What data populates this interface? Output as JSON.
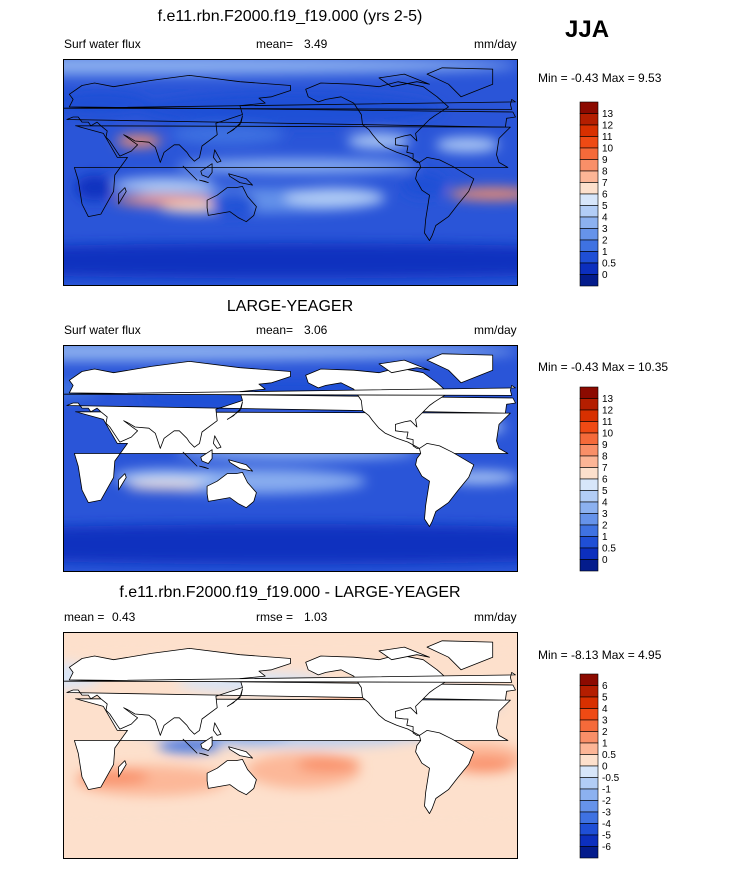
{
  "season": "JJA",
  "panels": [
    {
      "title": "f.e11.rbn.F2000.f19_f19.000 (yrs 2-5)",
      "left_label": "Surf water flux",
      "mean_label": "mean=",
      "mean_value": "3.49",
      "units": "mm/day",
      "minmax": "Min =  -0.43 Max =   9.53",
      "colorbar": {
        "labels": [
          "13",
          "12",
          "11",
          "10",
          "9",
          "8",
          "7",
          "6",
          "5",
          "4",
          "3",
          "2",
          "1",
          "0.5",
          "0"
        ],
        "colors": [
          "#8c0a00",
          "#b41e00",
          "#d83000",
          "#ef4a14",
          "#f56a3a",
          "#f98f68",
          "#fcb596",
          "#fde0cc",
          "#d7e6fa",
          "#b2cdf6",
          "#8cb1f0",
          "#6693ea",
          "#3f72e2",
          "#1f4fd6",
          "#0c2fbe",
          "#041c8c"
        ]
      },
      "land_masked": false
    },
    {
      "title": "LARGE-YEAGER",
      "left_label": "Surf water flux",
      "mean_label": "mean=",
      "mean_value": "3.06",
      "units": "mm/day",
      "minmax": "Min =  -0.43 Max =  10.35",
      "colorbar": {
        "labels": [
          "13",
          "12",
          "11",
          "10",
          "9",
          "8",
          "7",
          "6",
          "5",
          "4",
          "3",
          "2",
          "1",
          "0.5",
          "0"
        ],
        "colors": [
          "#8c0a00",
          "#b41e00",
          "#d83000",
          "#ef4a14",
          "#f56a3a",
          "#f98f68",
          "#fcb596",
          "#fde0cc",
          "#d7e6fa",
          "#b2cdf6",
          "#8cb1f0",
          "#6693ea",
          "#3f72e2",
          "#1f4fd6",
          "#0c2fbe",
          "#041c8c"
        ]
      },
      "land_masked": true
    },
    {
      "title": "f.e11.rbn.F2000.f19_f19.000 - LARGE-YEAGER",
      "left_label": "mean =",
      "left_value": "0.43",
      "mean_label": "rmse =",
      "mean_value": "1.03",
      "units": "mm/day",
      "minmax": "Min =  -8.13 Max =   4.95",
      "colorbar": {
        "labels": [
          "6",
          "5",
          "4",
          "3",
          "2",
          "1",
          "0.5",
          "0",
          "-0.5",
          "-1",
          "-2",
          "-3",
          "-4",
          "-5",
          "-6"
        ],
        "colors": [
          "#8c0a00",
          "#b41e00",
          "#d83000",
          "#ef4a14",
          "#f56a3a",
          "#f98f68",
          "#fcb596",
          "#fde0cc",
          "#d7e6fa",
          "#b2cdf6",
          "#8cb1f0",
          "#6693ea",
          "#3f72e2",
          "#1f4fd6",
          "#0c2fbe",
          "#041c8c"
        ]
      },
      "land_masked": true
    }
  ],
  "map_fields": [
    {
      "background": "#2a55d8",
      "blobs": [
        {
          "lon": 0,
          "lat": 85,
          "rx": 360,
          "ry": 8,
          "color": "#8cb1f0"
        },
        {
          "lon": 180,
          "lat": -70,
          "rx": 360,
          "ry": 14,
          "color": "#0c2fbe"
        },
        {
          "lon": 180,
          "lat": 50,
          "rx": 120,
          "ry": 14,
          "color": "#1f4fd6"
        },
        {
          "lon": 185,
          "lat": 5,
          "rx": 95,
          "ry": 6,
          "color": "#8cb1f0"
        },
        {
          "lon": 130,
          "lat": 30,
          "rx": 45,
          "ry": 8,
          "color": "#3f72e2"
        },
        {
          "lon": 150,
          "lat": -22,
          "rx": 100,
          "ry": 10,
          "color": "#6693ea"
        },
        {
          "lon": 215,
          "lat": -20,
          "rx": 40,
          "ry": 8,
          "color": "#b2cdf6"
        },
        {
          "lon": 80,
          "lat": -10,
          "rx": 40,
          "ry": 6,
          "color": "#b2cdf6"
        },
        {
          "lon": 80,
          "lat": -22,
          "rx": 40,
          "ry": 4,
          "color": "#f98f68"
        },
        {
          "lon": 105,
          "lat": -28,
          "rx": 28,
          "ry": 4,
          "color": "#fde0cc"
        },
        {
          "lon": 250,
          "lat": 25,
          "rx": 25,
          "ry": 6,
          "color": "#b2cdf6"
        },
        {
          "lon": 340,
          "lat": -17,
          "rx": 35,
          "ry": 5,
          "color": "#f98f68"
        },
        {
          "lon": 320,
          "lat": 22,
          "rx": 25,
          "ry": 6,
          "color": "#b2cdf6"
        },
        {
          "lon": 60,
          "lat": 25,
          "rx": 18,
          "ry": 5,
          "color": "#f98f68"
        },
        {
          "lon": 30,
          "lat": 55,
          "rx": 40,
          "ry": 10,
          "color": "#1f4fd6"
        },
        {
          "lon": 285,
          "lat": -10,
          "rx": 18,
          "ry": 10,
          "color": "#1f4fd6"
        },
        {
          "lon": 135,
          "lat": -25,
          "rx": 18,
          "ry": 10,
          "color": "#1f4fd6"
        },
        {
          "lon": 25,
          "lat": -12,
          "rx": 15,
          "ry": 10,
          "color": "#0c2fbe"
        }
      ]
    },
    {
      "background": "#2a55d8",
      "blobs": [
        {
          "lon": 0,
          "lat": 85,
          "rx": 360,
          "ry": 8,
          "color": "#8cb1f0"
        },
        {
          "lon": 180,
          "lat": -68,
          "rx": 360,
          "ry": 16,
          "color": "#0c2fbe"
        },
        {
          "lon": 180,
          "lat": 48,
          "rx": 120,
          "ry": 14,
          "color": "#1f4fd6"
        },
        {
          "lon": 185,
          "lat": 5,
          "rx": 95,
          "ry": 6,
          "color": "#8cb1f0"
        },
        {
          "lon": 150,
          "lat": 22,
          "rx": 70,
          "ry": 8,
          "color": "#b2cdf6"
        },
        {
          "lon": 150,
          "lat": -18,
          "rx": 90,
          "ry": 10,
          "color": "#8cb1f0"
        },
        {
          "lon": 80,
          "lat": -15,
          "rx": 40,
          "ry": 6,
          "color": "#b2cdf6"
        },
        {
          "lon": 80,
          "lat": -22,
          "rx": 30,
          "ry": 3,
          "color": "#fde0cc"
        },
        {
          "lon": 330,
          "lat": -15,
          "rx": 30,
          "ry": 5,
          "color": "#b2cdf6"
        },
        {
          "lon": 320,
          "lat": 25,
          "rx": 30,
          "ry": 6,
          "color": "#b2cdf6"
        },
        {
          "lon": 0,
          "lat": 55,
          "rx": 30,
          "ry": 8,
          "color": "#3f72e2"
        }
      ]
    },
    {
      "background": "#fde0cc",
      "blobs": [
        {
          "lon": 180,
          "lat": 75,
          "rx": 360,
          "ry": 10,
          "color": "#fde0cc"
        },
        {
          "lon": 70,
          "lat": -28,
          "rx": 60,
          "ry": 12,
          "color": "#fcb596"
        },
        {
          "lon": 40,
          "lat": -25,
          "rx": 28,
          "ry": 6,
          "color": "#f98f68"
        },
        {
          "lon": 190,
          "lat": -20,
          "rx": 45,
          "ry": 14,
          "color": "#fcb596"
        },
        {
          "lon": 210,
          "lat": -15,
          "rx": 25,
          "ry": 6,
          "color": "#f98f68"
        },
        {
          "lon": 330,
          "lat": -10,
          "rx": 35,
          "ry": 12,
          "color": "#fcb596"
        },
        {
          "lon": 335,
          "lat": -15,
          "rx": 22,
          "ry": 6,
          "color": "#f98f68"
        },
        {
          "lon": 225,
          "lat": 32,
          "rx": 30,
          "ry": 8,
          "color": "#fcb596"
        },
        {
          "lon": 190,
          "lat": 5,
          "rx": 80,
          "ry": 6,
          "color": "#b2cdf6"
        },
        {
          "lon": 150,
          "lat": 50,
          "rx": 60,
          "ry": 8,
          "color": "#d7e6fa"
        },
        {
          "lon": 305,
          "lat": 35,
          "rx": 40,
          "ry": 8,
          "color": "#6693ea"
        },
        {
          "lon": 145,
          "lat": 10,
          "rx": 35,
          "ry": 10,
          "color": "#8cb1f0"
        },
        {
          "lon": 100,
          "lat": 0,
          "rx": 25,
          "ry": 6,
          "color": "#3f72e2"
        },
        {
          "lon": 75,
          "lat": 15,
          "rx": 20,
          "ry": 8,
          "color": "#b2cdf6"
        },
        {
          "lon": 0,
          "lat": 55,
          "rx": 30,
          "ry": 10,
          "color": "#d7e6fa"
        },
        {
          "lon": 180,
          "lat": -58,
          "rx": 360,
          "ry": 8,
          "color": "#fde0cc"
        },
        {
          "lon": 270,
          "lat": 10,
          "rx": 25,
          "ry": 6,
          "color": "#b2cdf6"
        }
      ]
    }
  ],
  "land_polygons": [
    [
      [
        -17,
        14
      ],
      [
        -15,
        27
      ],
      [
        -6,
        36
      ],
      [
        10,
        37
      ],
      [
        32,
        31
      ],
      [
        43,
        12
      ],
      [
        51,
        12
      ],
      [
        41,
        -2
      ],
      [
        40,
        -15
      ],
      [
        35,
        -24
      ],
      [
        30,
        -33
      ],
      [
        20,
        -35
      ],
      [
        15,
        -25
      ],
      [
        12,
        -6
      ],
      [
        9,
        4
      ],
      [
        -8,
        4
      ],
      [
        -15,
        8
      ]
    ],
    [
      [
        -10,
        36
      ],
      [
        -9,
        43
      ],
      [
        -2,
        44
      ],
      [
        -4,
        48
      ],
      [
        5,
        52
      ],
      [
        8,
        58
      ],
      [
        5,
        62
      ],
      [
        15,
        69
      ],
      [
        25,
        71
      ],
      [
        40,
        68
      ],
      [
        70,
        73
      ],
      [
        100,
        77
      ],
      [
        140,
        72
      ],
      [
        180,
        69
      ],
      [
        180,
        65
      ],
      [
        165,
        60
      ],
      [
        155,
        59
      ],
      [
        160,
        55
      ],
      [
        140,
        53
      ],
      [
        142,
        46
      ],
      [
        130,
        42
      ],
      [
        121,
        39
      ],
      [
        122,
        30
      ],
      [
        110,
        21
      ],
      [
        108,
        12
      ],
      [
        104,
        9
      ],
      [
        100,
        13
      ],
      [
        98,
        16
      ],
      [
        92,
        22
      ],
      [
        88,
        22
      ],
      [
        80,
        16
      ],
      [
        77,
        8
      ],
      [
        73,
        20
      ],
      [
        68,
        24
      ],
      [
        57,
        25
      ],
      [
        52,
        28
      ],
      [
        48,
        30
      ],
      [
        56,
        24
      ],
      [
        59,
        22
      ],
      [
        54,
        17
      ],
      [
        45,
        13
      ],
      [
        43,
        16
      ],
      [
        37,
        25
      ],
      [
        34,
        28
      ],
      [
        35,
        33
      ],
      [
        30,
        37
      ],
      [
        27,
        40
      ],
      [
        22,
        37
      ],
      [
        20,
        40
      ],
      [
        15,
        40
      ],
      [
        12,
        44
      ],
      [
        8,
        44
      ],
      [
        3,
        42
      ]
    ],
    [
      [
        114,
        -22
      ],
      [
        122,
        -18
      ],
      [
        130,
        -12
      ],
      [
        137,
        -12
      ],
      [
        142,
        -11
      ],
      [
        146,
        -19
      ],
      [
        153,
        -27
      ],
      [
        151,
        -34
      ],
      [
        145,
        -39
      ],
      [
        139,
        -36
      ],
      [
        132,
        -31
      ],
      [
        115,
        -34
      ],
      [
        114,
        -28
      ]
    ],
    [
      [
        -168,
        66
      ],
      [
        -156,
        71
      ],
      [
        -130,
        70
      ],
      [
        -110,
        68
      ],
      [
        -95,
        72
      ],
      [
        -85,
        70
      ],
      [
        -75,
        68
      ],
      [
        -64,
        60
      ],
      [
        -55,
        52
      ],
      [
        -66,
        45
      ],
      [
        -70,
        42
      ],
      [
        -76,
        36
      ],
      [
        -81,
        31
      ],
      [
        -80,
        25
      ],
      [
        -85,
        30
      ],
      [
        -90,
        29
      ],
      [
        -97,
        27
      ],
      [
        -97,
        22
      ],
      [
        -90,
        21
      ],
      [
        -87,
        21
      ],
      [
        -88,
        16
      ],
      [
        -83,
        15
      ],
      [
        -83,
        10
      ],
      [
        -80,
        8
      ],
      [
        -78,
        8
      ],
      [
        -87,
        13
      ],
      [
        -96,
        16
      ],
      [
        -105,
        20
      ],
      [
        -110,
        24
      ],
      [
        -115,
        30
      ],
      [
        -118,
        34
      ],
      [
        -123,
        38
      ],
      [
        -124,
        46
      ],
      [
        -130,
        55
      ],
      [
        -140,
        60
      ],
      [
        -152,
        58
      ],
      [
        -158,
        56
      ],
      [
        -166,
        60
      ]
    ],
    [
      [
        -78,
        8
      ],
      [
        -72,
        12
      ],
      [
        -62,
        10
      ],
      [
        -52,
        5
      ],
      [
        -35,
        -5
      ],
      [
        -39,
        -15
      ],
      [
        -48,
        -26
      ],
      [
        -55,
        -35
      ],
      [
        -65,
        -42
      ],
      [
        -68,
        -50
      ],
      [
        -70,
        -54
      ],
      [
        -74,
        -48
      ],
      [
        -73,
        -37
      ],
      [
        -70,
        -18
      ],
      [
        -76,
        -14
      ],
      [
        -81,
        -5
      ],
      [
        -80,
        0
      ],
      [
        -77,
        4
      ]
    ],
    [
      [
        -45,
        60
      ],
      [
        -20,
        70
      ],
      [
        -20,
        82
      ],
      [
        -60,
        83
      ],
      [
        -72,
        78
      ],
      [
        -55,
        70
      ]
    ],
    [
      [
        -5,
        50
      ],
      [
        1,
        51
      ],
      [
        -2,
        56
      ],
      [
        -5,
        58
      ],
      [
        -6,
        54
      ]
    ],
    [
      [
        44,
        -25
      ],
      [
        50,
        -15
      ],
      [
        49,
        -12
      ],
      [
        44,
        -17
      ]
    ],
    [
      [
        95,
        5
      ],
      [
        106,
        -6
      ],
      [
        100,
        0
      ]
    ],
    [
      [
        108,
        -6
      ],
      [
        115,
        -8
      ],
      [
        112,
        -7
      ]
    ],
    [
      [
        109,
        1
      ],
      [
        118,
        7
      ],
      [
        118,
        0
      ],
      [
        115,
        -4
      ],
      [
        110,
        -2
      ]
    ],
    [
      [
        131,
        -1
      ],
      [
        145,
        -5
      ],
      [
        150,
        -10
      ],
      [
        140,
        -8
      ],
      [
        132,
        -3
      ]
    ],
    [
      [
        130,
        31
      ],
      [
        135,
        34
      ],
      [
        141,
        40
      ],
      [
        142,
        45
      ],
      [
        140,
        38
      ],
      [
        133,
        33
      ]
    ],
    [
      [
        -100,
        68
      ],
      [
        -80,
        72
      ],
      [
        -70,
        70
      ],
      [
        -90,
        78
      ],
      [
        -110,
        75
      ]
    ],
    [
      [
        120,
        18
      ],
      [
        125,
        9
      ],
      [
        122,
        8
      ],
      [
        119,
        12
      ]
    ]
  ]
}
